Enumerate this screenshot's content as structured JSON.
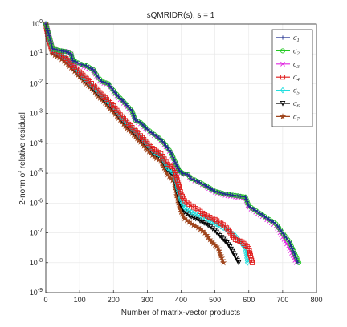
{
  "chart_data": {
    "type": "line",
    "title": "sQMRIDR(s), s = 1",
    "xlabel": "Number of matrix-vector products",
    "ylabel": "2-norm of relative residual",
    "xlim": [
      0,
      800
    ],
    "ylim_exponent": [
      -9,
      0
    ],
    "y_scale": "log",
    "x_ticks": [
      "0",
      "100",
      "200",
      "300",
      "400",
      "500",
      "600",
      "700",
      "800"
    ],
    "y_tick_base": "10",
    "y_tick_exponents": [
      "0",
      "-1",
      "-2",
      "-3",
      "-4",
      "-5",
      "-6",
      "-7",
      "-8",
      "-9"
    ],
    "grid": true,
    "legend_position": "top-right",
    "series": [
      {
        "name": "σ",
        "sub": "1",
        "color": "#1f2f8f",
        "marker": "plus",
        "points": [
          [
            0,
            1
          ],
          [
            8,
            0.5
          ],
          [
            20,
            0.15
          ],
          [
            40,
            0.13
          ],
          [
            60,
            0.12
          ],
          [
            75,
            0.1
          ],
          [
            80,
            0.06
          ],
          [
            95,
            0.05
          ],
          [
            105,
            0.045
          ],
          [
            120,
            0.04
          ],
          [
            140,
            0.03
          ],
          [
            150,
            0.02
          ],
          [
            165,
            0.012
          ],
          [
            185,
            0.01
          ],
          [
            205,
            0.005
          ],
          [
            230,
            0.0025
          ],
          [
            255,
            0.0012
          ],
          [
            265,
            0.0006
          ],
          [
            280,
            0.0005
          ],
          [
            300,
            0.0003
          ],
          [
            320,
            0.0002
          ],
          [
            335,
            0.00015
          ],
          [
            350,
            0.0001
          ],
          [
            370,
            5e-05
          ],
          [
            385,
            2e-05
          ],
          [
            395,
            1.2e-05
          ],
          [
            405,
            1e-05
          ],
          [
            420,
            9e-06
          ],
          [
            430,
            6.5e-06
          ],
          [
            440,
            6e-06
          ],
          [
            470,
            4e-06
          ],
          [
            500,
            2.5e-06
          ],
          [
            530,
            2e-06
          ],
          [
            560,
            1.8e-06
          ],
          [
            590,
            1.6e-06
          ],
          [
            600,
            8e-07
          ],
          [
            640,
            4e-07
          ],
          [
            680,
            2e-07
          ],
          [
            720,
            5e-08
          ],
          [
            745,
            1e-08
          ]
        ]
      },
      {
        "name": "σ",
        "sub": "2",
        "color": "#22c922",
        "marker": "circle",
        "points": [
          [
            0,
            1
          ],
          [
            8,
            0.5
          ],
          [
            20,
            0.15
          ],
          [
            40,
            0.13
          ],
          [
            60,
            0.12
          ],
          [
            75,
            0.1
          ],
          [
            80,
            0.06
          ],
          [
            95,
            0.05
          ],
          [
            105,
            0.045
          ],
          [
            120,
            0.04
          ],
          [
            140,
            0.03
          ],
          [
            150,
            0.02
          ],
          [
            165,
            0.012
          ],
          [
            185,
            0.01
          ],
          [
            205,
            0.005
          ],
          [
            230,
            0.0025
          ],
          [
            255,
            0.0012
          ],
          [
            265,
            0.0006
          ],
          [
            280,
            0.0005
          ],
          [
            300,
            0.0003
          ],
          [
            320,
            0.0002
          ],
          [
            335,
            0.00015
          ],
          [
            350,
            0.0001
          ],
          [
            370,
            5e-05
          ],
          [
            385,
            2e-05
          ],
          [
            395,
            1.2e-05
          ],
          [
            405,
            1e-05
          ],
          [
            420,
            9e-06
          ],
          [
            430,
            6.5e-06
          ],
          [
            440,
            6e-06
          ],
          [
            470,
            4e-06
          ],
          [
            500,
            2.5e-06
          ],
          [
            530,
            2e-06
          ],
          [
            560,
            1.8e-06
          ],
          [
            590,
            1.6e-06
          ],
          [
            600,
            8e-07
          ],
          [
            640,
            4e-07
          ],
          [
            680,
            2e-07
          ],
          [
            720,
            5e-08
          ],
          [
            748,
            1e-08
          ]
        ]
      },
      {
        "name": "σ",
        "sub": "3",
        "color": "#e026e0",
        "marker": "x",
        "points": [
          [
            0,
            1
          ],
          [
            8,
            0.5
          ],
          [
            20,
            0.15
          ],
          [
            40,
            0.13
          ],
          [
            60,
            0.12
          ],
          [
            75,
            0.1
          ],
          [
            80,
            0.055
          ],
          [
            95,
            0.045
          ],
          [
            105,
            0.04
          ],
          [
            120,
            0.035
          ],
          [
            140,
            0.028
          ],
          [
            150,
            0.018
          ],
          [
            165,
            0.011
          ],
          [
            185,
            0.009
          ],
          [
            205,
            0.0045
          ],
          [
            230,
            0.0022
          ],
          [
            255,
            0.0011
          ],
          [
            265,
            0.00055
          ],
          [
            280,
            0.00045
          ],
          [
            300,
            0.00028
          ],
          [
            320,
            0.00018
          ],
          [
            335,
            0.00014
          ],
          [
            350,
            9e-05
          ],
          [
            370,
            4.5e-05
          ],
          [
            385,
            1.8e-05
          ],
          [
            395,
            1.1e-05
          ],
          [
            405,
            9.5e-06
          ],
          [
            420,
            8.5e-06
          ],
          [
            430,
            6.2e-06
          ],
          [
            440,
            5.5e-06
          ],
          [
            470,
            3.7e-06
          ],
          [
            500,
            2.3e-06
          ],
          [
            530,
            1.8e-06
          ],
          [
            560,
            1.6e-06
          ],
          [
            590,
            1.4e-06
          ],
          [
            600,
            7e-07
          ],
          [
            640,
            3.5e-07
          ],
          [
            680,
            1.7e-07
          ],
          [
            720,
            3e-08
          ],
          [
            740,
            1e-08
          ]
        ]
      },
      {
        "name": "σ",
        "sub": "4",
        "color": "#e01a1a",
        "marker": "square",
        "points": [
          [
            0,
            1
          ],
          [
            8,
            0.3
          ],
          [
            20,
            0.13
          ],
          [
            40,
            0.1
          ],
          [
            60,
            0.07
          ],
          [
            80,
            0.04
          ],
          [
            100,
            0.025
          ],
          [
            120,
            0.015
          ],
          [
            140,
            0.009
          ],
          [
            160,
            0.005
          ],
          [
            180,
            0.003
          ],
          [
            200,
            0.0018
          ],
          [
            220,
            0.0009
          ],
          [
            240,
            0.0005
          ],
          [
            260,
            0.0003
          ],
          [
            280,
            0.00018
          ],
          [
            300,
            0.0001
          ],
          [
            320,
            6e-05
          ],
          [
            340,
            4.5e-05
          ],
          [
            350,
            3e-05
          ],
          [
            360,
            2e-05
          ],
          [
            380,
            1.5e-05
          ],
          [
            390,
            5e-06
          ],
          [
            400,
            2e-06
          ],
          [
            410,
            1.2e-06
          ],
          [
            430,
            8e-07
          ],
          [
            450,
            6e-07
          ],
          [
            470,
            4e-07
          ],
          [
            500,
            2.8e-07
          ],
          [
            530,
            1.7e-07
          ],
          [
            560,
            6e-08
          ],
          [
            580,
            5e-08
          ],
          [
            600,
            3e-08
          ],
          [
            610,
            1e-08
          ]
        ]
      },
      {
        "name": "σ",
        "sub": "5",
        "color": "#22dede",
        "marker": "diamond",
        "points": [
          [
            0,
            1
          ],
          [
            8,
            0.3
          ],
          [
            20,
            0.13
          ],
          [
            40,
            0.1
          ],
          [
            60,
            0.07
          ],
          [
            80,
            0.04
          ],
          [
            100,
            0.022
          ],
          [
            120,
            0.013
          ],
          [
            140,
            0.008
          ],
          [
            160,
            0.0045
          ],
          [
            180,
            0.0027
          ],
          [
            200,
            0.0016
          ],
          [
            220,
            0.0008
          ],
          [
            240,
            0.00045
          ],
          [
            260,
            0.00027
          ],
          [
            280,
            0.00016
          ],
          [
            300,
            9e-05
          ],
          [
            320,
            5e-05
          ],
          [
            340,
            4e-05
          ],
          [
            350,
            2.5e-05
          ],
          [
            360,
            1.5e-05
          ],
          [
            380,
            1e-05
          ],
          [
            390,
            3e-06
          ],
          [
            400,
            1.2e-06
          ],
          [
            410,
            7e-07
          ],
          [
            430,
            5e-07
          ],
          [
            450,
            4e-07
          ],
          [
            480,
            2.8e-07
          ],
          [
            510,
            1.8e-07
          ],
          [
            540,
            1.2e-07
          ],
          [
            560,
            8e-08
          ],
          [
            575,
            5e-08
          ],
          [
            590,
            3e-08
          ],
          [
            596,
            1e-08
          ]
        ]
      },
      {
        "name": "σ",
        "sub": "6",
        "color": "#000000",
        "marker": "triangle-down",
        "points": [
          [
            0,
            1
          ],
          [
            8,
            0.3
          ],
          [
            20,
            0.12
          ],
          [
            40,
            0.09
          ],
          [
            60,
            0.065
          ],
          [
            80,
            0.035
          ],
          [
            100,
            0.02
          ],
          [
            120,
            0.012
          ],
          [
            140,
            0.007
          ],
          [
            160,
            0.004
          ],
          [
            180,
            0.0024
          ],
          [
            200,
            0.0014
          ],
          [
            220,
            0.0007
          ],
          [
            240,
            0.0004
          ],
          [
            260,
            0.00024
          ],
          [
            280,
            0.00014
          ],
          [
            300,
            8e-05
          ],
          [
            320,
            4.5e-05
          ],
          [
            340,
            3.5e-05
          ],
          [
            350,
            2e-05
          ],
          [
            360,
            1.3e-05
          ],
          [
            380,
            8e-06
          ],
          [
            390,
            2.2e-06
          ],
          [
            400,
            8e-07
          ],
          [
            410,
            5e-07
          ],
          [
            430,
            3.5e-07
          ],
          [
            450,
            2.8e-07
          ],
          [
            480,
            1.8e-07
          ],
          [
            500,
            1.2e-07
          ],
          [
            520,
            7e-08
          ],
          [
            540,
            4e-08
          ],
          [
            555,
            2e-08
          ],
          [
            570,
            1e-08
          ]
        ]
      },
      {
        "name": "σ",
        "sub": "7",
        "color": "#a0461e",
        "marker": "star",
        "points": [
          [
            0,
            1
          ],
          [
            8,
            0.3
          ],
          [
            20,
            0.1
          ],
          [
            40,
            0.075
          ],
          [
            60,
            0.05
          ],
          [
            80,
            0.03
          ],
          [
            100,
            0.017
          ],
          [
            120,
            0.01
          ],
          [
            140,
            0.006
          ],
          [
            160,
            0.0033
          ],
          [
            180,
            0.002
          ],
          [
            200,
            0.0011
          ],
          [
            220,
            0.0006
          ],
          [
            240,
            0.00032
          ],
          [
            260,
            0.00019
          ],
          [
            280,
            0.00011
          ],
          [
            300,
            6e-05
          ],
          [
            320,
            3.5e-05
          ],
          [
            340,
            2.5e-05
          ],
          [
            350,
            1.5e-05
          ],
          [
            360,
            9e-06
          ],
          [
            380,
            5e-06
          ],
          [
            390,
            1.2e-06
          ],
          [
            400,
            5e-07
          ],
          [
            410,
            3e-07
          ],
          [
            430,
            2e-07
          ],
          [
            450,
            1.5e-07
          ],
          [
            470,
            1e-07
          ],
          [
            490,
            5e-08
          ],
          [
            510,
            3e-08
          ],
          [
            525,
            1e-08
          ]
        ]
      }
    ]
  }
}
